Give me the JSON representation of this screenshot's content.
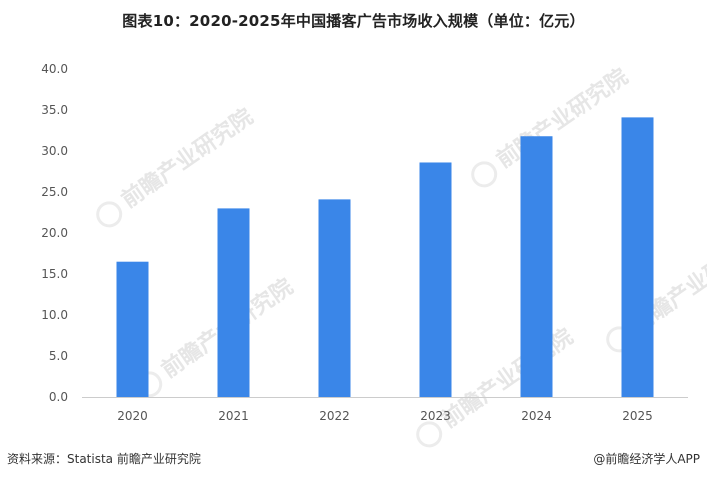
{
  "chart_data": {
    "type": "bar",
    "title": "图表10：2020-2025年中国播客广告市场收入规模（单位：亿元）",
    "categories": [
      "2020",
      "2021",
      "2022",
      "2023",
      "2024",
      "2025"
    ],
    "values": [
      16.5,
      23.0,
      24.1,
      28.6,
      31.8,
      34.1
    ],
    "ylim": [
      0,
      40
    ],
    "yticks": [
      "0.0",
      "5.0",
      "10.0",
      "15.0",
      "20.0",
      "25.0",
      "30.0",
      "35.0",
      "40.0"
    ],
    "xlabel": "",
    "ylabel": "",
    "grid": false,
    "bar_color": "#3a86e8"
  },
  "footer": {
    "source": "资料来源：Statista  前瞻产业研究院",
    "brand": "@前瞻经济学人APP"
  },
  "watermark": {
    "text": "前瞻产业研究院"
  },
  "colors": {
    "bar": "#3a86e8",
    "axis": "#cccccc",
    "tick_text": "#555555"
  }
}
